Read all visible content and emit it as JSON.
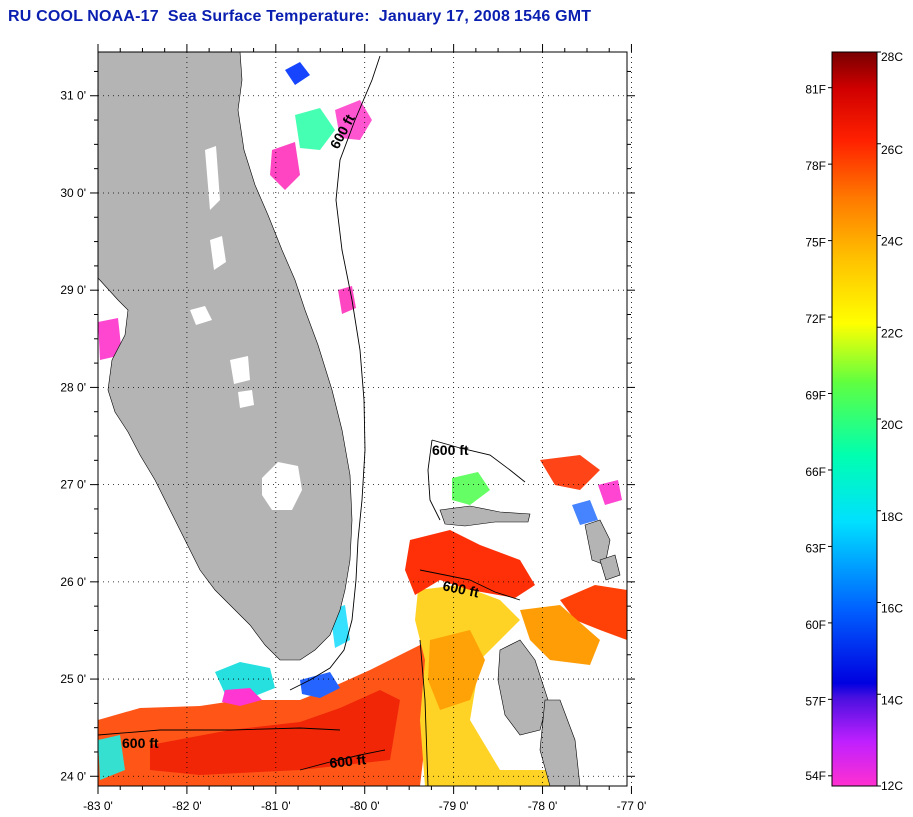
{
  "title": {
    "org": "RU COOL",
    "satellite": "NOAA-17",
    "product": "Sea Surface Temperature:",
    "date": "January 17, 2008",
    "time": "1546 GMT"
  },
  "map": {
    "lat_labels": [
      "31 0'",
      "30 0'",
      "29 0'",
      "28 0'",
      "27 0'",
      "26 0'",
      "25 0'",
      "24 0'"
    ],
    "lon_labels": [
      "-83 0'",
      "-82 0'",
      "-81 0'",
      "-80 0'",
      "-79 0'",
      "-78 0'",
      "-77 0'"
    ],
    "lat_range": [
      23.9,
      31.45
    ],
    "lon_range": [
      -83.0,
      -77.05
    ],
    "land_color": "#b4b4b4",
    "isobath_label": "600 ft",
    "grid": "dotted"
  },
  "colorbar": {
    "celsius_labels": [
      "28C",
      "26C",
      "24C",
      "22C",
      "20C",
      "18C",
      "16C",
      "14C",
      "12C"
    ],
    "fahrenheit_labels": [
      "81F",
      "78F",
      "75F",
      "72F",
      "69F",
      "66F",
      "63F",
      "60F",
      "57F",
      "54F"
    ],
    "celsius_range": [
      12,
      28
    ],
    "colors": [
      "#ff30d0",
      "#a000ff",
      "#0000e0",
      "#0080ff",
      "#00ffff",
      "#20ff80",
      "#c0ff00",
      "#ffff00",
      "#ff9000",
      "#ff3000",
      "#e00000",
      "#7a0000"
    ]
  }
}
